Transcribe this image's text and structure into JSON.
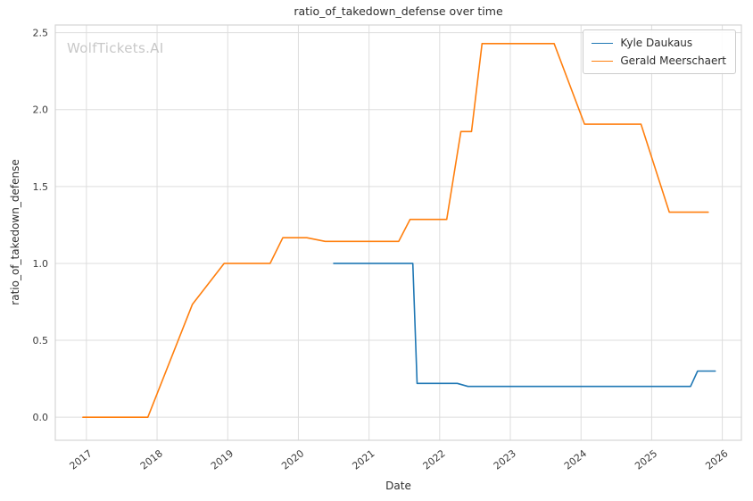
{
  "watermark": {
    "text": "WolfTickets.AI"
  },
  "chart_data": {
    "type": "line",
    "title": "ratio_of_takedown_defense over time",
    "xlabel": "Date",
    "ylabel": "ratio_of_takedown_defense",
    "xlim": [
      2016.56,
      2026.27
    ],
    "ylim": [
      -0.15,
      2.55
    ],
    "x_ticks": [
      2017,
      2018,
      2019,
      2020,
      2021,
      2022,
      2023,
      2024,
      2025,
      2026
    ],
    "y_ticks": [
      0.0,
      0.5,
      1.0,
      1.5,
      2.0,
      2.5
    ],
    "grid": true,
    "legend": {
      "position": "upper-right"
    },
    "colors": {
      "grid": "#dddddd",
      "border": "#d4d4d4",
      "tick_label": "#3b3b3b",
      "title": "#2e2e2e",
      "watermark": "#c8c8c8",
      "background": "#ffffff"
    },
    "series": [
      {
        "name": "Kyle Daukaus",
        "color": "#1f77b4",
        "points": [
          [
            2020.5,
            1.0
          ],
          [
            2021.62,
            1.0
          ],
          [
            2021.68,
            0.22
          ],
          [
            2022.25,
            0.22
          ],
          [
            2022.4,
            0.2
          ],
          [
            2025.55,
            0.2
          ],
          [
            2025.65,
            0.3
          ],
          [
            2025.9,
            0.3
          ]
        ]
      },
      {
        "name": "Gerald Meerschaert",
        "color": "#ff7f0e",
        "points": [
          [
            2016.95,
            0.0
          ],
          [
            2017.87,
            0.0
          ],
          [
            2018.5,
            0.733
          ],
          [
            2018.95,
            1.0
          ],
          [
            2019.6,
            1.0
          ],
          [
            2019.78,
            1.167
          ],
          [
            2020.12,
            1.167
          ],
          [
            2020.38,
            1.143
          ],
          [
            2021.42,
            1.143
          ],
          [
            2021.58,
            1.286
          ],
          [
            2022.1,
            1.286
          ],
          [
            2022.3,
            1.857
          ],
          [
            2022.45,
            1.857
          ],
          [
            2022.6,
            2.429
          ],
          [
            2023.62,
            2.429
          ],
          [
            2024.05,
            1.905
          ],
          [
            2024.85,
            1.905
          ],
          [
            2025.25,
            1.333
          ],
          [
            2025.8,
            1.333
          ]
        ]
      }
    ]
  }
}
